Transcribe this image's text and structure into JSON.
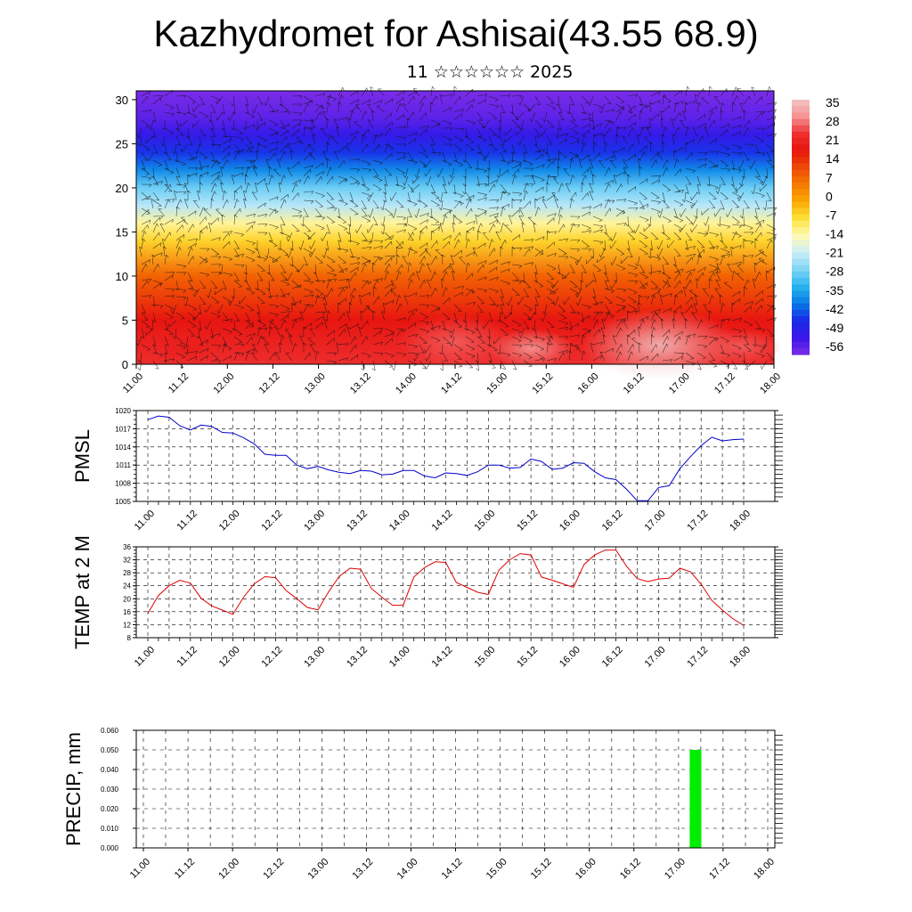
{
  "title": "Kazhydromet for Ashisai(43.55 68.9)",
  "subtitle": "11 ☆☆☆☆☆☆ 2025",
  "time_labels": [
    "11.00",
    "11.12",
    "12.00",
    "12.12",
    "13.00",
    "13.12",
    "14.00",
    "14.12",
    "15.00",
    "15.12",
    "16.00",
    "16.12",
    "17.00",
    "17.12",
    "18.00"
  ],
  "chart_data": [
    {
      "type": "heatmap",
      "name": "cross-section",
      "x_ticks": [
        "11.00",
        "11.12",
        "12.00",
        "12.12",
        "13.00",
        "13.12",
        "14.00",
        "14.12",
        "15.00",
        "15.12",
        "16.00",
        "16.12",
        "17.00",
        "17.12",
        "18.00"
      ],
      "y_ticks": [
        0,
        5,
        10,
        15,
        20,
        25,
        30
      ],
      "ylim": [
        0,
        31
      ],
      "colorbar_labels": [
        "35",
        "28",
        "21",
        "14",
        "7",
        "0",
        "-7",
        "-14",
        "-21",
        "-28",
        "-35",
        "-42",
        "-49",
        "-56"
      ],
      "colorbar_colors": [
        "#f2c4c4",
        "#f59393",
        "#ee3030",
        "#e81510",
        "#ee4a06",
        "#f57a00",
        "#fba800",
        "#fde23a",
        "#fff9b2",
        "#cdeefa",
        "#7fd4f5",
        "#26b5ee",
        "#0878e6",
        "#1a2be8",
        "#3b16e8",
        "#7a2ce8"
      ],
      "series_note": "temperature shading with wind barbs"
    },
    {
      "type": "line",
      "name": "pmsl",
      "ylabel": "PMSL",
      "yticks": [
        1005,
        1008,
        1011,
        1014,
        1017,
        1020
      ],
      "ylim": [
        1005,
        1020
      ],
      "color": "#0000cc",
      "x_count": 57,
      "values": [
        1018.5,
        1019.1,
        1018.9,
        1017.5,
        1016.8,
        1017.6,
        1017.4,
        1016.4,
        1016.3,
        1015.5,
        1014.5,
        1012.8,
        1012.6,
        1012.6,
        1011.0,
        1010.4,
        1010.8,
        1010.2,
        1009.8,
        1009.6,
        1010.1,
        1010.0,
        1009.4,
        1009.5,
        1010.1,
        1010.1,
        1009.2,
        1008.9,
        1009.7,
        1009.6,
        1009.3,
        1009.9,
        1011.0,
        1011.0,
        1010.5,
        1010.6,
        1012.0,
        1011.6,
        1010.3,
        1010.5,
        1011.4,
        1011.3,
        1009.9,
        1008.9,
        1008.6,
        1007.0,
        1005.1,
        1005.1,
        1007.3,
        1007.6,
        1010.4,
        1012.4,
        1014.2,
        1015.6,
        1015.0,
        1015.2,
        1015.3
      ]
    },
    {
      "type": "line",
      "name": "temp2m",
      "ylabel": "TEMP at 2 M",
      "yticks": [
        8,
        12,
        16,
        20,
        24,
        28,
        32,
        36
      ],
      "ylim": [
        8,
        36
      ],
      "color": "#dd0000",
      "x_count": 57,
      "values": [
        15.5,
        21.0,
        24.0,
        25.7,
        24.8,
        20.2,
        17.8,
        16.5,
        15.2,
        20.5,
        24.6,
        26.8,
        26.5,
        22.5,
        20.0,
        17.3,
        16.6,
        22.2,
        26.9,
        29.4,
        29.1,
        23.2,
        20.5,
        18.0,
        18.0,
        26.7,
        29.6,
        31.4,
        31.2,
        25.0,
        23.5,
        22.0,
        21.3,
        28.8,
        32.0,
        33.9,
        33.5,
        26.7,
        25.7,
        24.6,
        23.5,
        30.6,
        33.5,
        35.0,
        35.0,
        30.0,
        26.2,
        25.3,
        26.1,
        26.3,
        29.4,
        28.3,
        24.5,
        19.5,
        16.5,
        13.8,
        11.8
      ]
    },
    {
      "type": "bar",
      "name": "precip",
      "ylabel": "PRECIP, mm",
      "yticks": [
        "0.000",
        "0.010",
        "0.020",
        "0.030",
        "0.040",
        "0.050",
        "0.060"
      ],
      "ylim": [
        0,
        0.06
      ],
      "color": "#00ee00",
      "bars": [
        {
          "x": "17.03",
          "value": 0.05
        }
      ]
    }
  ]
}
